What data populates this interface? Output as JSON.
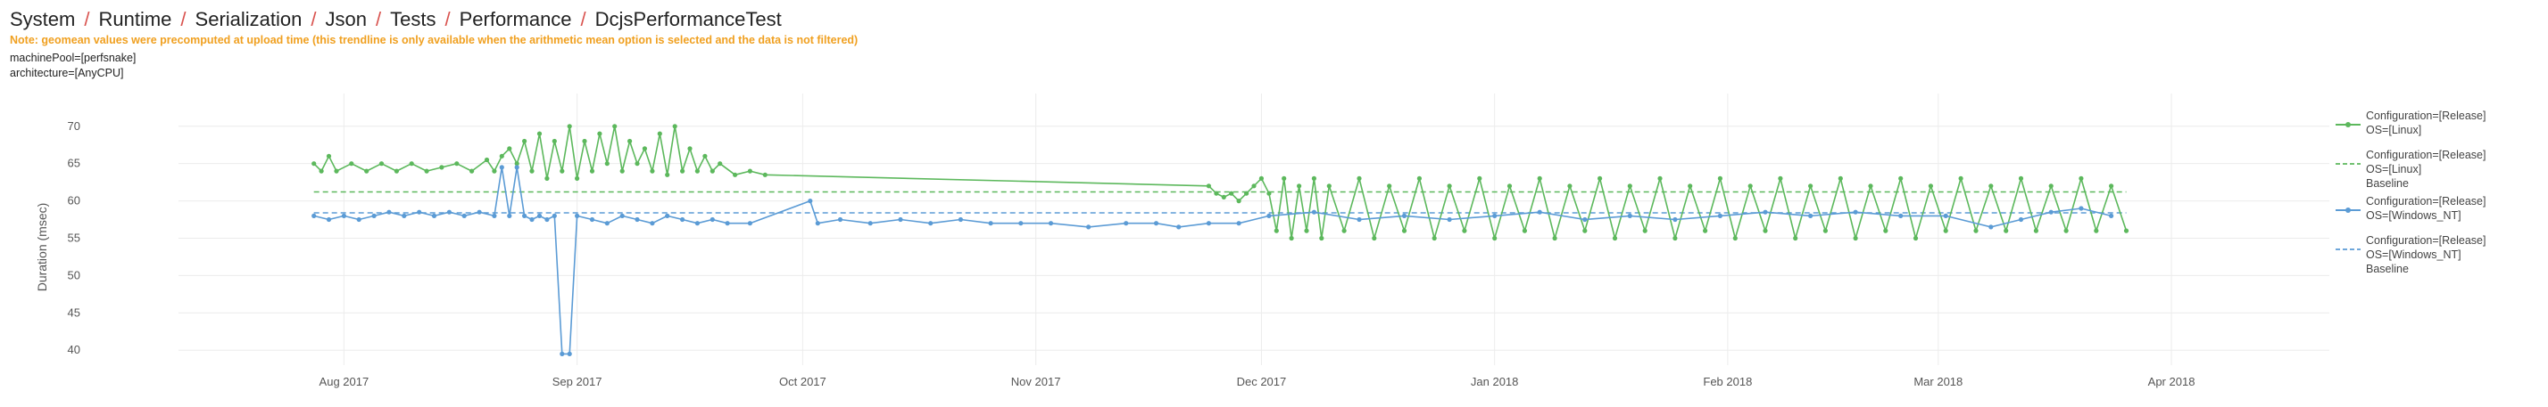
{
  "breadcrumb": [
    "System",
    "Runtime",
    "Serialization",
    "Json",
    "Tests",
    "Performance",
    "DcjsPerformanceTest"
  ],
  "note": "Note: geomean values were precomputed at upload time (this trendline is only available when the arithmetic mean option is selected and the data is not filtered)",
  "meta": [
    "machinePool=[perfsnake]",
    "architecture=[AnyCPU]"
  ],
  "colors": {
    "green": "#5cb85c",
    "blue": "#5b9bd5",
    "grid": "#ececec"
  },
  "chart_data": {
    "type": "line",
    "ylabel": "Duration (msec)",
    "ylim": [
      38,
      72
    ],
    "yticks": [
      40,
      45,
      50,
      55,
      60,
      65,
      70
    ],
    "x_start": "2017-07-10",
    "x_end": "2018-04-22",
    "xticks": [
      {
        "date": "2017-08-01",
        "label": "Aug 2017"
      },
      {
        "date": "2017-09-01",
        "label": "Sep 2017"
      },
      {
        "date": "2017-10-01",
        "label": "Oct 2017"
      },
      {
        "date": "2017-11-01",
        "label": "Nov 2017"
      },
      {
        "date": "2017-12-01",
        "label": "Dec 2017"
      },
      {
        "date": "2018-01-01",
        "label": "Jan 2018"
      },
      {
        "date": "2018-02-01",
        "label": "Feb 2018"
      },
      {
        "date": "2018-03-01",
        "label": "Mar 2018"
      },
      {
        "date": "2018-04-01",
        "label": "Apr 2018"
      }
    ],
    "series": [
      {
        "name": [
          "Configuration=[Release]",
          "OS=[Linux]"
        ],
        "color": "#5cb85c",
        "style": "line+markers",
        "points": [
          [
            "2017-07-28",
            65
          ],
          [
            "2017-07-29",
            64
          ],
          [
            "2017-07-30",
            66
          ],
          [
            "2017-07-31",
            64
          ],
          [
            "2017-08-02",
            65
          ],
          [
            "2017-08-04",
            64
          ],
          [
            "2017-08-06",
            65
          ],
          [
            "2017-08-08",
            64
          ],
          [
            "2017-08-10",
            65
          ],
          [
            "2017-08-12",
            64
          ],
          [
            "2017-08-14",
            64.5
          ],
          [
            "2017-08-16",
            65
          ],
          [
            "2017-08-18",
            64
          ],
          [
            "2017-08-20",
            65.5
          ],
          [
            "2017-08-21",
            64
          ],
          [
            "2017-08-22",
            66
          ],
          [
            "2017-08-23",
            67
          ],
          [
            "2017-08-24",
            65
          ],
          [
            "2017-08-25",
            68
          ],
          [
            "2017-08-26",
            64
          ],
          [
            "2017-08-27",
            69
          ],
          [
            "2017-08-28",
            63
          ],
          [
            "2017-08-29",
            68
          ],
          [
            "2017-08-30",
            64
          ],
          [
            "2017-08-31",
            70
          ],
          [
            "2017-09-01",
            63
          ],
          [
            "2017-09-02",
            68
          ],
          [
            "2017-09-03",
            64
          ],
          [
            "2017-09-04",
            69
          ],
          [
            "2017-09-05",
            65
          ],
          [
            "2017-09-06",
            70
          ],
          [
            "2017-09-07",
            64
          ],
          [
            "2017-09-08",
            68
          ],
          [
            "2017-09-09",
            65
          ],
          [
            "2017-09-10",
            67
          ],
          [
            "2017-09-11",
            64
          ],
          [
            "2017-09-12",
            69
          ],
          [
            "2017-09-13",
            63.5
          ],
          [
            "2017-09-14",
            70
          ],
          [
            "2017-09-15",
            64
          ],
          [
            "2017-09-16",
            67
          ],
          [
            "2017-09-17",
            64
          ],
          [
            "2017-09-18",
            66
          ],
          [
            "2017-09-19",
            64
          ],
          [
            "2017-09-20",
            65
          ],
          [
            "2017-09-22",
            63.5
          ],
          [
            "2017-09-24",
            64
          ],
          [
            "2017-09-26",
            63.5
          ],
          [
            "2017-11-24",
            62
          ],
          [
            "2017-11-25",
            61
          ],
          [
            "2017-11-26",
            60.5
          ],
          [
            "2017-11-27",
            61
          ],
          [
            "2017-11-28",
            60
          ],
          [
            "2017-11-29",
            61
          ],
          [
            "2017-11-30",
            62
          ],
          [
            "2017-12-01",
            63
          ],
          [
            "2017-12-02",
            61
          ],
          [
            "2017-12-03",
            56
          ],
          [
            "2017-12-04",
            63
          ],
          [
            "2017-12-05",
            55
          ],
          [
            "2017-12-06",
            62
          ],
          [
            "2017-12-07",
            56
          ],
          [
            "2017-12-08",
            63
          ],
          [
            "2017-12-09",
            55
          ],
          [
            "2017-12-10",
            62
          ],
          [
            "2017-12-12",
            56
          ],
          [
            "2017-12-14",
            63
          ],
          [
            "2017-12-16",
            55
          ],
          [
            "2017-12-18",
            62
          ],
          [
            "2017-12-20",
            56
          ],
          [
            "2017-12-22",
            63
          ],
          [
            "2017-12-24",
            55
          ],
          [
            "2017-12-26",
            62
          ],
          [
            "2017-12-28",
            56
          ],
          [
            "2017-12-30",
            63
          ],
          [
            "2018-01-01",
            55
          ],
          [
            "2018-01-03",
            62
          ],
          [
            "2018-01-05",
            56
          ],
          [
            "2018-01-07",
            63
          ],
          [
            "2018-01-09",
            55
          ],
          [
            "2018-01-11",
            62
          ],
          [
            "2018-01-13",
            56
          ],
          [
            "2018-01-15",
            63
          ],
          [
            "2018-01-17",
            55
          ],
          [
            "2018-01-19",
            62
          ],
          [
            "2018-01-21",
            56
          ],
          [
            "2018-01-23",
            63
          ],
          [
            "2018-01-25",
            55
          ],
          [
            "2018-01-27",
            62
          ],
          [
            "2018-01-29",
            56
          ],
          [
            "2018-01-31",
            63
          ],
          [
            "2018-02-02",
            55
          ],
          [
            "2018-02-04",
            62
          ],
          [
            "2018-02-06",
            56
          ],
          [
            "2018-02-08",
            63
          ],
          [
            "2018-02-10",
            55
          ],
          [
            "2018-02-12",
            62
          ],
          [
            "2018-02-14",
            56
          ],
          [
            "2018-02-16",
            63
          ],
          [
            "2018-02-18",
            55
          ],
          [
            "2018-02-20",
            62
          ],
          [
            "2018-02-22",
            56
          ],
          [
            "2018-02-24",
            63
          ],
          [
            "2018-02-26",
            55
          ],
          [
            "2018-02-28",
            62
          ],
          [
            "2018-03-02",
            56
          ],
          [
            "2018-03-04",
            63
          ],
          [
            "2018-03-06",
            56
          ],
          [
            "2018-03-08",
            62
          ],
          [
            "2018-03-10",
            56
          ],
          [
            "2018-03-12",
            63
          ],
          [
            "2018-03-14",
            56
          ],
          [
            "2018-03-16",
            62
          ],
          [
            "2018-03-18",
            56
          ],
          [
            "2018-03-20",
            63
          ],
          [
            "2018-03-22",
            56
          ],
          [
            "2018-03-24",
            62
          ],
          [
            "2018-03-26",
            56
          ]
        ]
      },
      {
        "name": [
          "Configuration=[Release]",
          "OS=[Linux]",
          "Baseline"
        ],
        "color": "#5cb85c",
        "style": "dash",
        "baseline": 61.2
      },
      {
        "name": [
          "Configuration=[Release]",
          "OS=[Windows_NT]"
        ],
        "color": "#5b9bd5",
        "style": "line+markers",
        "points": [
          [
            "2017-07-28",
            58
          ],
          [
            "2017-07-30",
            57.5
          ],
          [
            "2017-08-01",
            58
          ],
          [
            "2017-08-03",
            57.5
          ],
          [
            "2017-08-05",
            58
          ],
          [
            "2017-08-07",
            58.5
          ],
          [
            "2017-08-09",
            58
          ],
          [
            "2017-08-11",
            58.5
          ],
          [
            "2017-08-13",
            58
          ],
          [
            "2017-08-15",
            58.5
          ],
          [
            "2017-08-17",
            58
          ],
          [
            "2017-08-19",
            58.5
          ],
          [
            "2017-08-21",
            58
          ],
          [
            "2017-08-22",
            64.5
          ],
          [
            "2017-08-23",
            58
          ],
          [
            "2017-08-24",
            64.5
          ],
          [
            "2017-08-25",
            58
          ],
          [
            "2017-08-26",
            57.5
          ],
          [
            "2017-08-27",
            58
          ],
          [
            "2017-08-28",
            57.5
          ],
          [
            "2017-08-29",
            58
          ],
          [
            "2017-08-30",
            39.5
          ],
          [
            "2017-08-31",
            39.5
          ],
          [
            "2017-09-01",
            58
          ],
          [
            "2017-09-03",
            57.5
          ],
          [
            "2017-09-05",
            57
          ],
          [
            "2017-09-07",
            58
          ],
          [
            "2017-09-09",
            57.5
          ],
          [
            "2017-09-11",
            57
          ],
          [
            "2017-09-13",
            58
          ],
          [
            "2017-09-15",
            57.5
          ],
          [
            "2017-09-17",
            57
          ],
          [
            "2017-09-19",
            57.5
          ],
          [
            "2017-09-21",
            57
          ],
          [
            "2017-09-24",
            57
          ],
          [
            "2017-10-02",
            60
          ],
          [
            "2017-10-03",
            57
          ],
          [
            "2017-10-06",
            57.5
          ],
          [
            "2017-10-10",
            57
          ],
          [
            "2017-10-14",
            57.5
          ],
          [
            "2017-10-18",
            57
          ],
          [
            "2017-10-22",
            57.5
          ],
          [
            "2017-10-26",
            57
          ],
          [
            "2017-10-30",
            57
          ],
          [
            "2017-11-03",
            57
          ],
          [
            "2017-11-08",
            56.5
          ],
          [
            "2017-11-13",
            57
          ],
          [
            "2017-11-17",
            57
          ],
          [
            "2017-11-20",
            56.5
          ],
          [
            "2017-11-24",
            57
          ],
          [
            "2017-11-28",
            57
          ],
          [
            "2017-12-02",
            58
          ],
          [
            "2017-12-08",
            58.5
          ],
          [
            "2017-12-14",
            57.5
          ],
          [
            "2017-12-20",
            58
          ],
          [
            "2017-12-26",
            57.5
          ],
          [
            "2018-01-01",
            58
          ],
          [
            "2018-01-07",
            58.5
          ],
          [
            "2018-01-13",
            57.5
          ],
          [
            "2018-01-19",
            58
          ],
          [
            "2018-01-25",
            57.5
          ],
          [
            "2018-01-31",
            58
          ],
          [
            "2018-02-06",
            58.5
          ],
          [
            "2018-02-12",
            58
          ],
          [
            "2018-02-18",
            58.5
          ],
          [
            "2018-02-24",
            58
          ],
          [
            "2018-03-02",
            58
          ],
          [
            "2018-03-08",
            56.5
          ],
          [
            "2018-03-12",
            57.5
          ],
          [
            "2018-03-16",
            58.5
          ],
          [
            "2018-03-20",
            59
          ],
          [
            "2018-03-24",
            58
          ]
        ]
      },
      {
        "name": [
          "Configuration=[Release]",
          "OS=[Windows_NT]",
          "Baseline"
        ],
        "color": "#5b9bd5",
        "style": "dash",
        "baseline": 58.4
      }
    ]
  }
}
